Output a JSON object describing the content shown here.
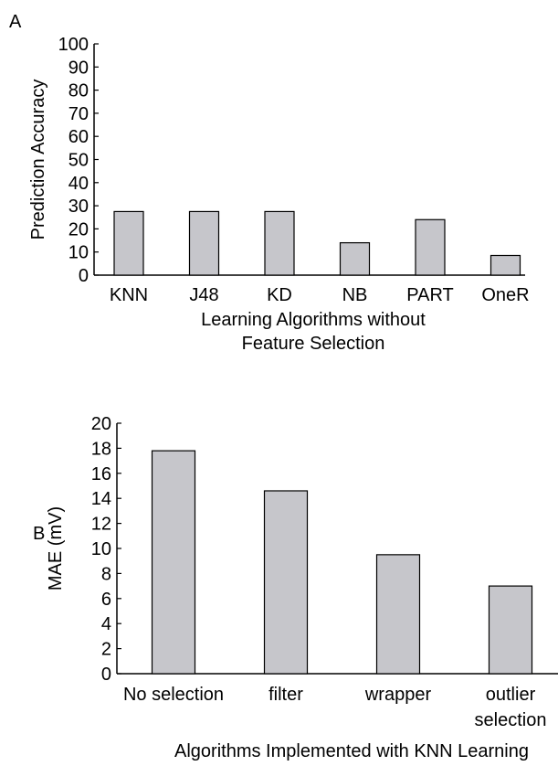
{
  "chart_data": [
    {
      "type": "bar",
      "panel_label": "A",
      "categories": [
        "KNN",
        "J48",
        "KD",
        "NB",
        "PART",
        "OneR"
      ],
      "values": [
        27.5,
        27.5,
        27.5,
        14,
        24,
        8.5
      ],
      "ylabel": "Prediction Accuracy",
      "xlabel_lines": [
        "Learning Algorithms without",
        "Feature Selection"
      ],
      "ylim": [
        0,
        100
      ],
      "yticks": [
        0,
        10,
        20,
        30,
        40,
        50,
        60,
        70,
        80,
        90,
        100
      ],
      "bar_color": "#c6c6cb",
      "grid": false
    },
    {
      "type": "bar",
      "panel_label": "B",
      "categories": [
        [
          "No selection"
        ],
        [
          "filter"
        ],
        [
          "wrapper"
        ],
        [
          "outlier",
          "selection"
        ]
      ],
      "values": [
        17.8,
        14.6,
        9.5,
        7
      ],
      "ylabel": "MAE (mV)",
      "xlabel_lines": [
        "Algorithms Implemented with KNN Learning"
      ],
      "ylim": [
        0,
        20
      ],
      "yticks": [
        0,
        2,
        4,
        6,
        8,
        10,
        12,
        14,
        16,
        18,
        20
      ],
      "bar_color": "#c6c6cb",
      "grid": false
    }
  ]
}
